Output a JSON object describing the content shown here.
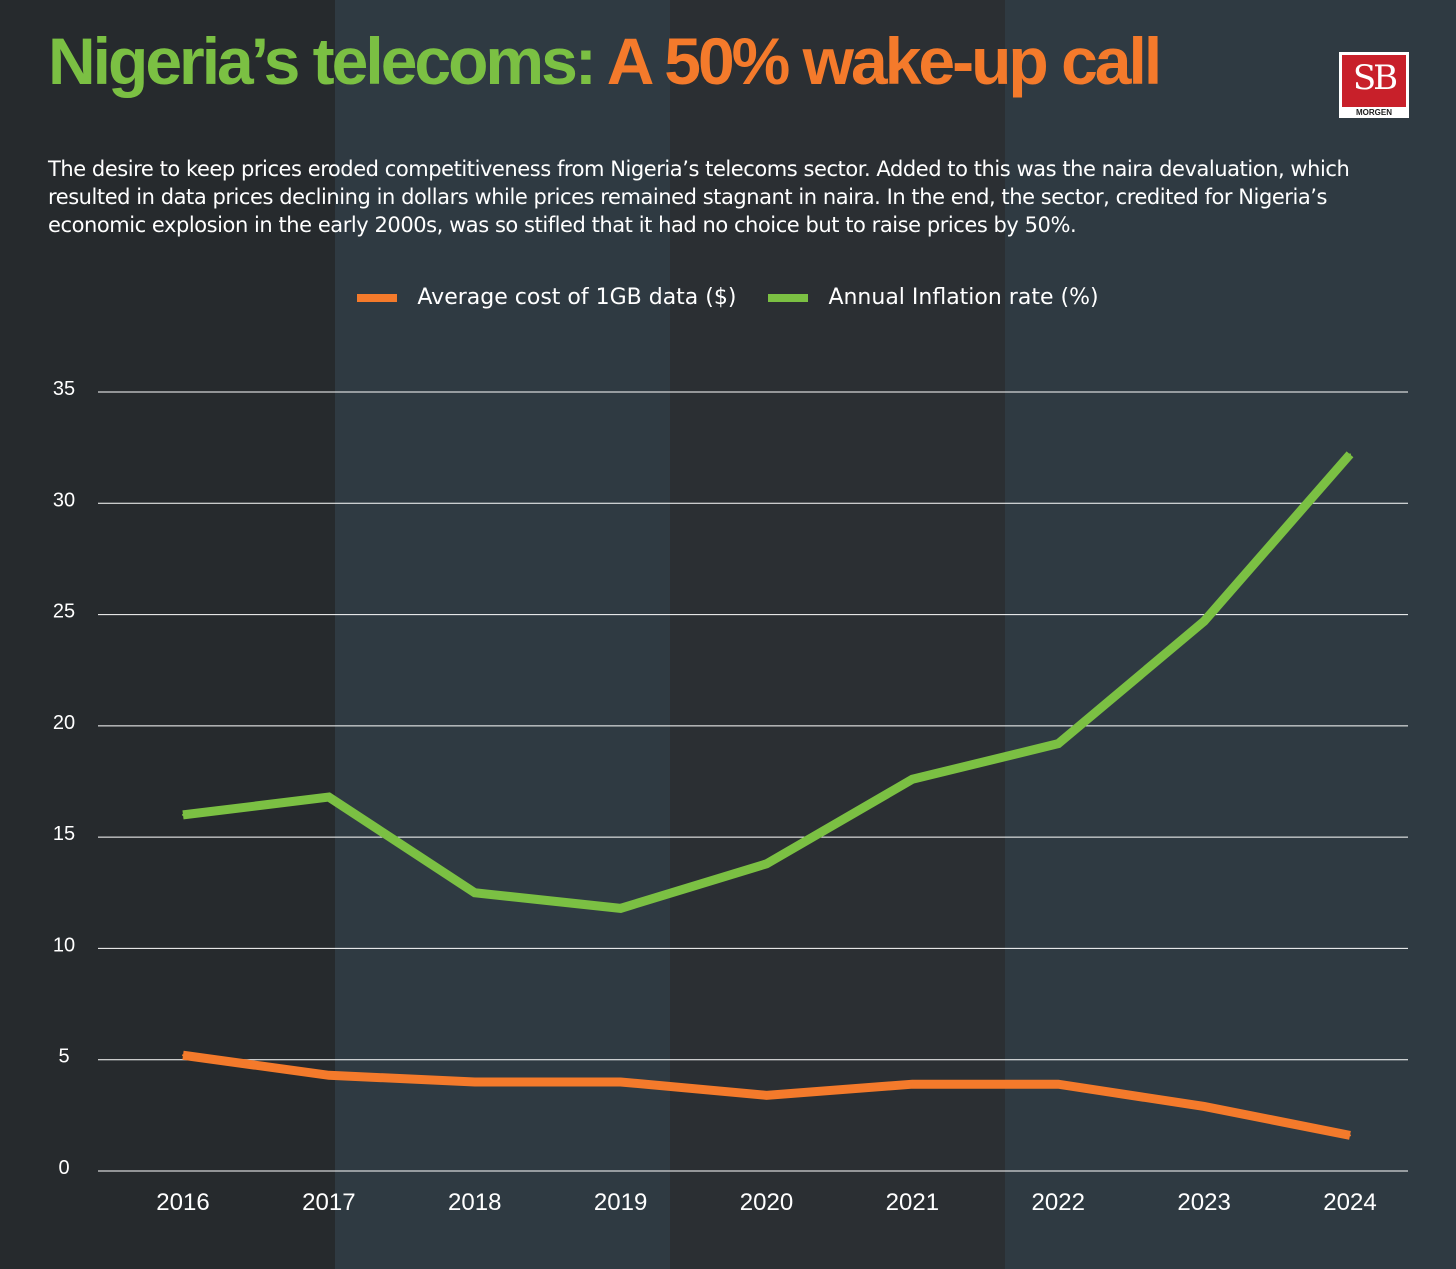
{
  "title": {
    "part1": "Nigeria’s telecoms: ",
    "part2": "A 50% wake-up call"
  },
  "logo": {
    "mark": "SB",
    "subtext": "MORGEN"
  },
  "description": "The desire to keep prices eroded competitiveness from Nigeria’s telecoms sector. Added to this was the naira devaluation, which resulted in data prices declining in dollars while prices remained stagnant in naira. In the end, the sector, credited for Nigeria’s economic explosion in the early 2000s, was so stifled that it had no choice but to raise prices by 50%.",
  "colors": {
    "background": "#2a2e31",
    "orange": "#f47a2b",
    "green": "#7bc043",
    "grid": "#ffffff"
  },
  "chart_data": {
    "type": "line",
    "x": [
      "2016",
      "2017",
      "2018",
      "2019",
      "2020",
      "2021",
      "2022",
      "2023",
      "2024"
    ],
    "series": [
      {
        "name": "Average cost of 1GB data ($)",
        "color": "#f47a2b",
        "values": [
          5.2,
          4.3,
          4.0,
          4.0,
          3.4,
          3.9,
          3.9,
          2.9,
          1.6
        ]
      },
      {
        "name": "Annual Inflation rate (%)",
        "color": "#7bc043",
        "values": [
          16.0,
          16.8,
          12.5,
          11.8,
          13.8,
          17.6,
          19.2,
          24.7,
          32.2
        ]
      }
    ],
    "yticks": [
      0,
      5,
      10,
      15,
      20,
      25,
      30,
      35
    ],
    "ylim": [
      0,
      35
    ],
    "grid": true,
    "legend_position": "top-center"
  }
}
